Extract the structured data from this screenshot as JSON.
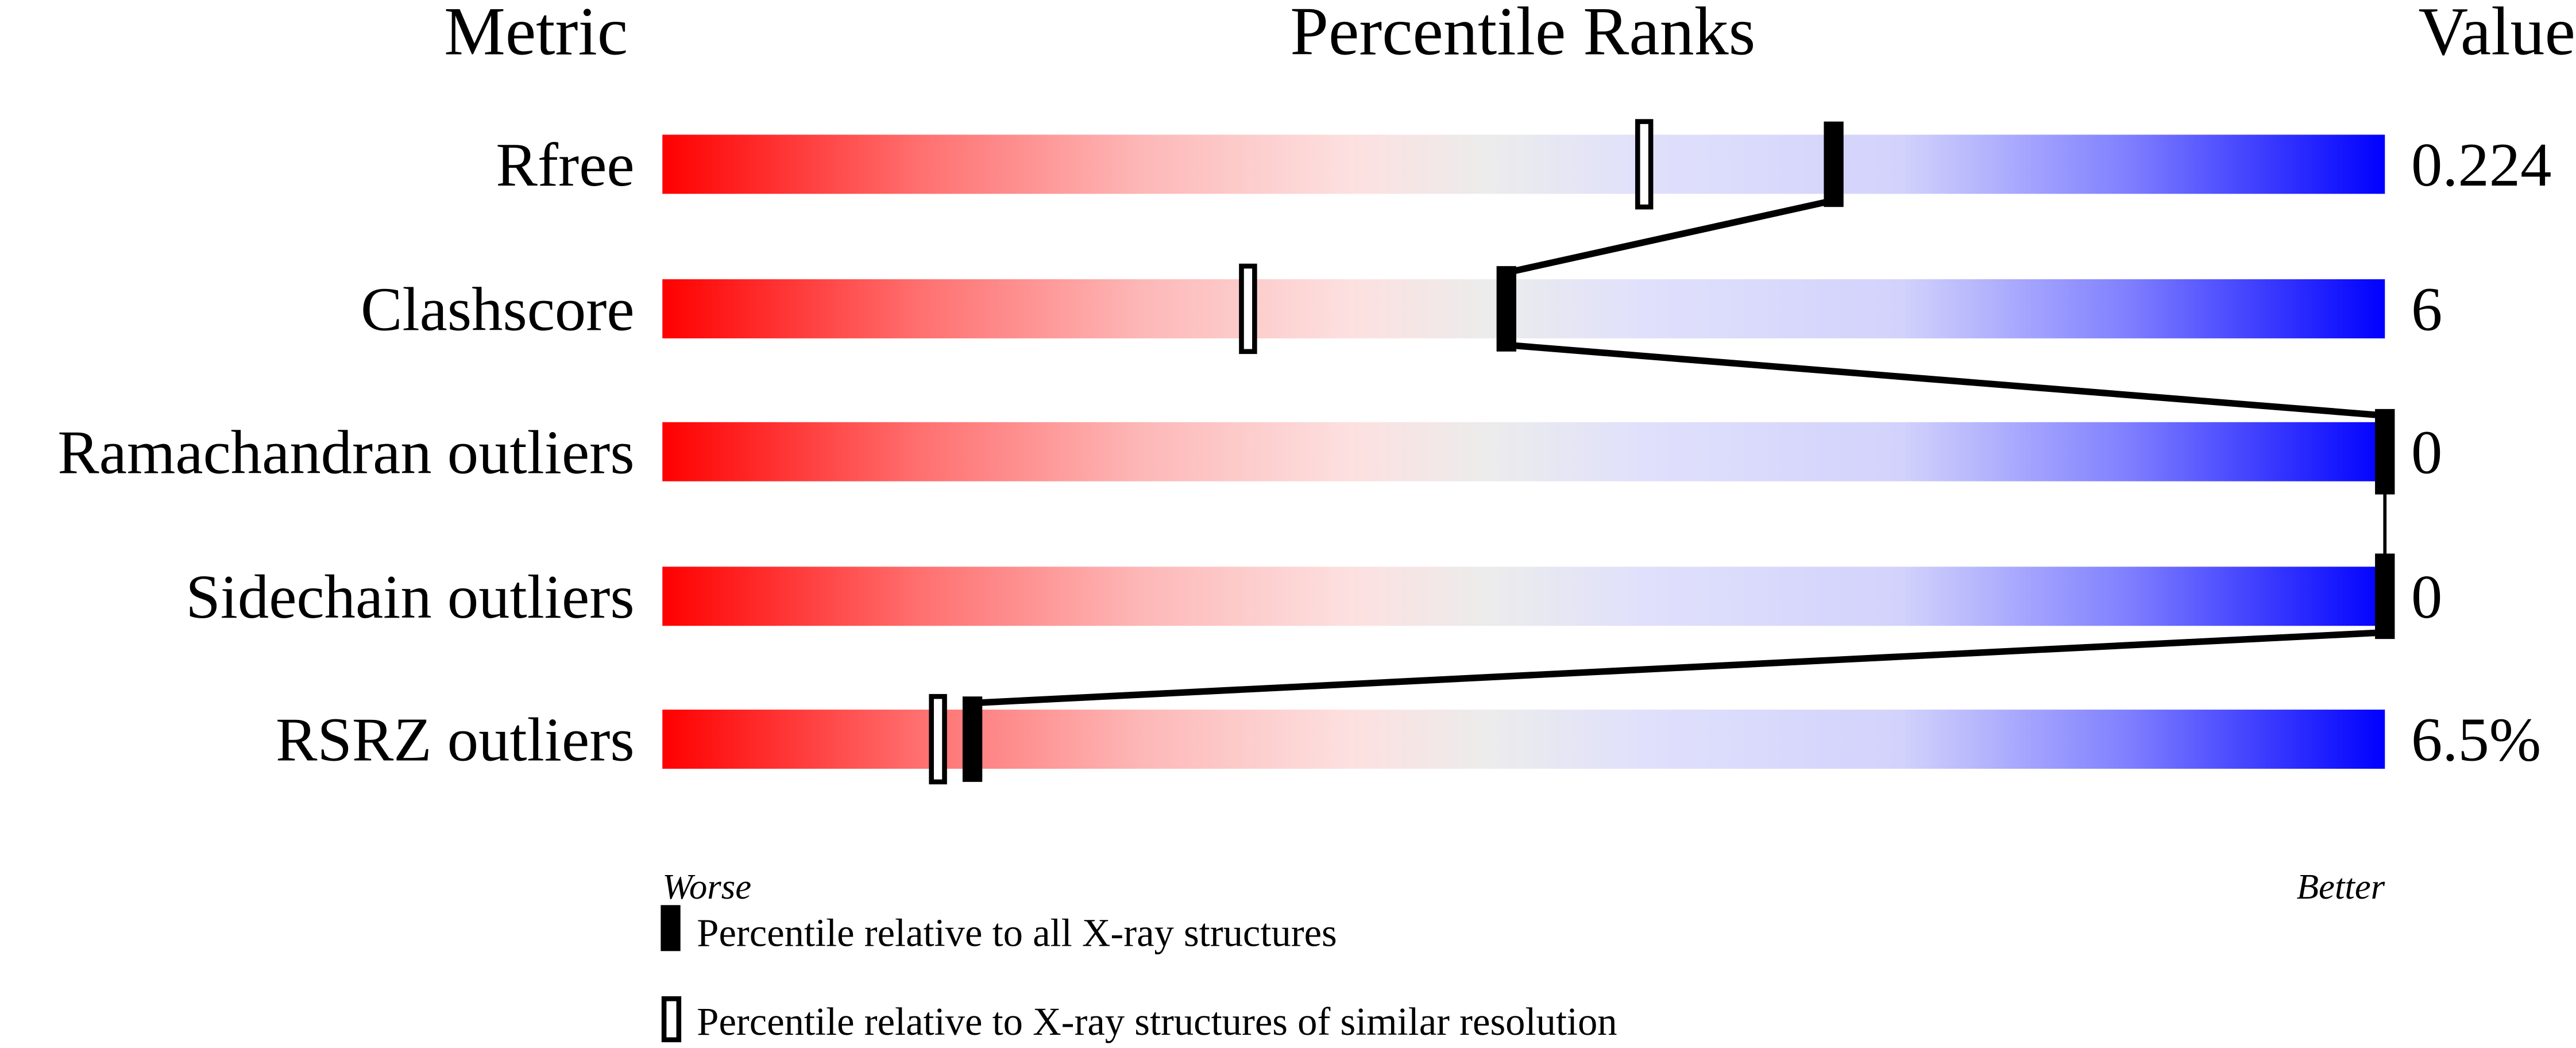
{
  "chart_data": {
    "type": "percentile-bar",
    "headers": {
      "metric": "Metric",
      "ranks": "Percentile Ranks",
      "value": "Value"
    },
    "xlim": [
      0,
      100
    ],
    "axis_labels": {
      "left": "Worse",
      "right": "Better"
    },
    "metrics": [
      {
        "name": "Rfree",
        "value": "0.224",
        "percentile_all": 68,
        "percentile_similar": 57
      },
      {
        "name": "Clashscore",
        "value": "6",
        "percentile_all": 49,
        "percentile_similar": 34
      },
      {
        "name": "Ramachandran outliers",
        "value": "0",
        "percentile_all": 100,
        "percentile_similar": 100
      },
      {
        "name": "Sidechain outliers",
        "value": "0",
        "percentile_all": 100,
        "percentile_similar": 100
      },
      {
        "name": "RSRZ outliers",
        "value": "6.5%",
        "percentile_all": 18,
        "percentile_similar": 16
      }
    ],
    "legend": [
      {
        "marker": "filled",
        "label": "Percentile relative to all X-ray structures"
      },
      {
        "marker": "open",
        "label": "Percentile relative to X-ray structures of similar resolution"
      }
    ],
    "colors": {
      "worse": "#ff0000",
      "middle": "#eeeeee",
      "better": "#0000ff"
    }
  }
}
